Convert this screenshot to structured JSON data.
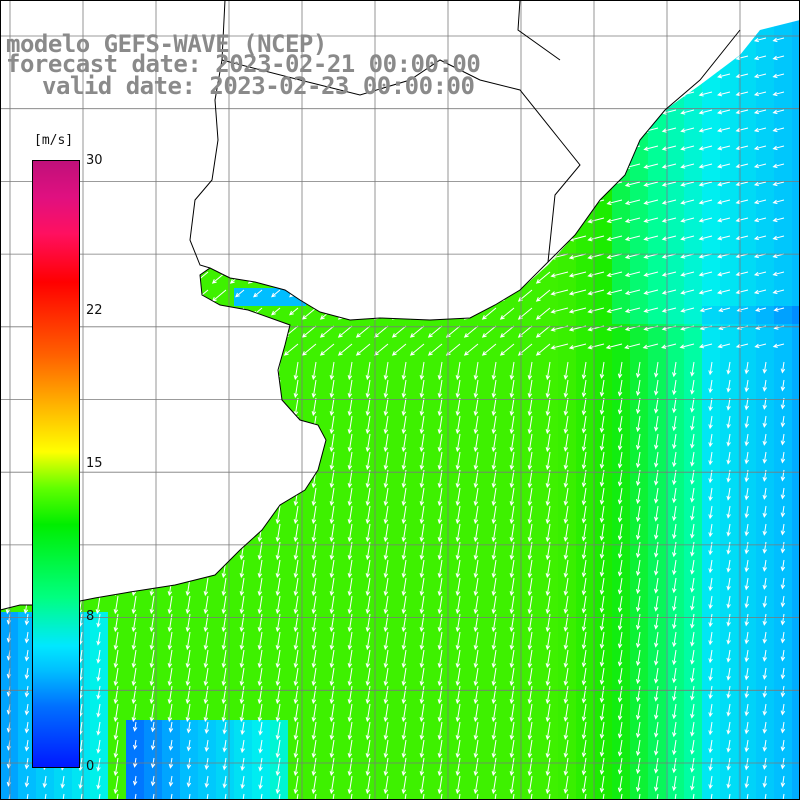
{
  "title": {
    "line1": "modelo GEFS-WAVE (NCEP)",
    "line2": "forecast date: 2023-02-21 00:00:00",
    "line3": "valid date: 2023-02-23 00:00:00"
  },
  "colorbar": {
    "unit": "[m/s]",
    "ticks": [
      "30",
      "22",
      "15",
      "8",
      "0"
    ],
    "tick_values": [
      30,
      22,
      15,
      8,
      0
    ],
    "range": [
      0,
      30
    ],
    "colors": [
      "#0018ff",
      "#00c0ff",
      "#00ff80",
      "#00ee00",
      "#ffff00",
      "#ff6000",
      "#ff0000",
      "#c0107a"
    ]
  },
  "map": {
    "variable": "wind speed and direction",
    "field_colors": {
      "land": "#ffffff",
      "coast": "#000000",
      "grid": "#7a7a7a",
      "arrows": "#ffffff"
    }
  }
}
